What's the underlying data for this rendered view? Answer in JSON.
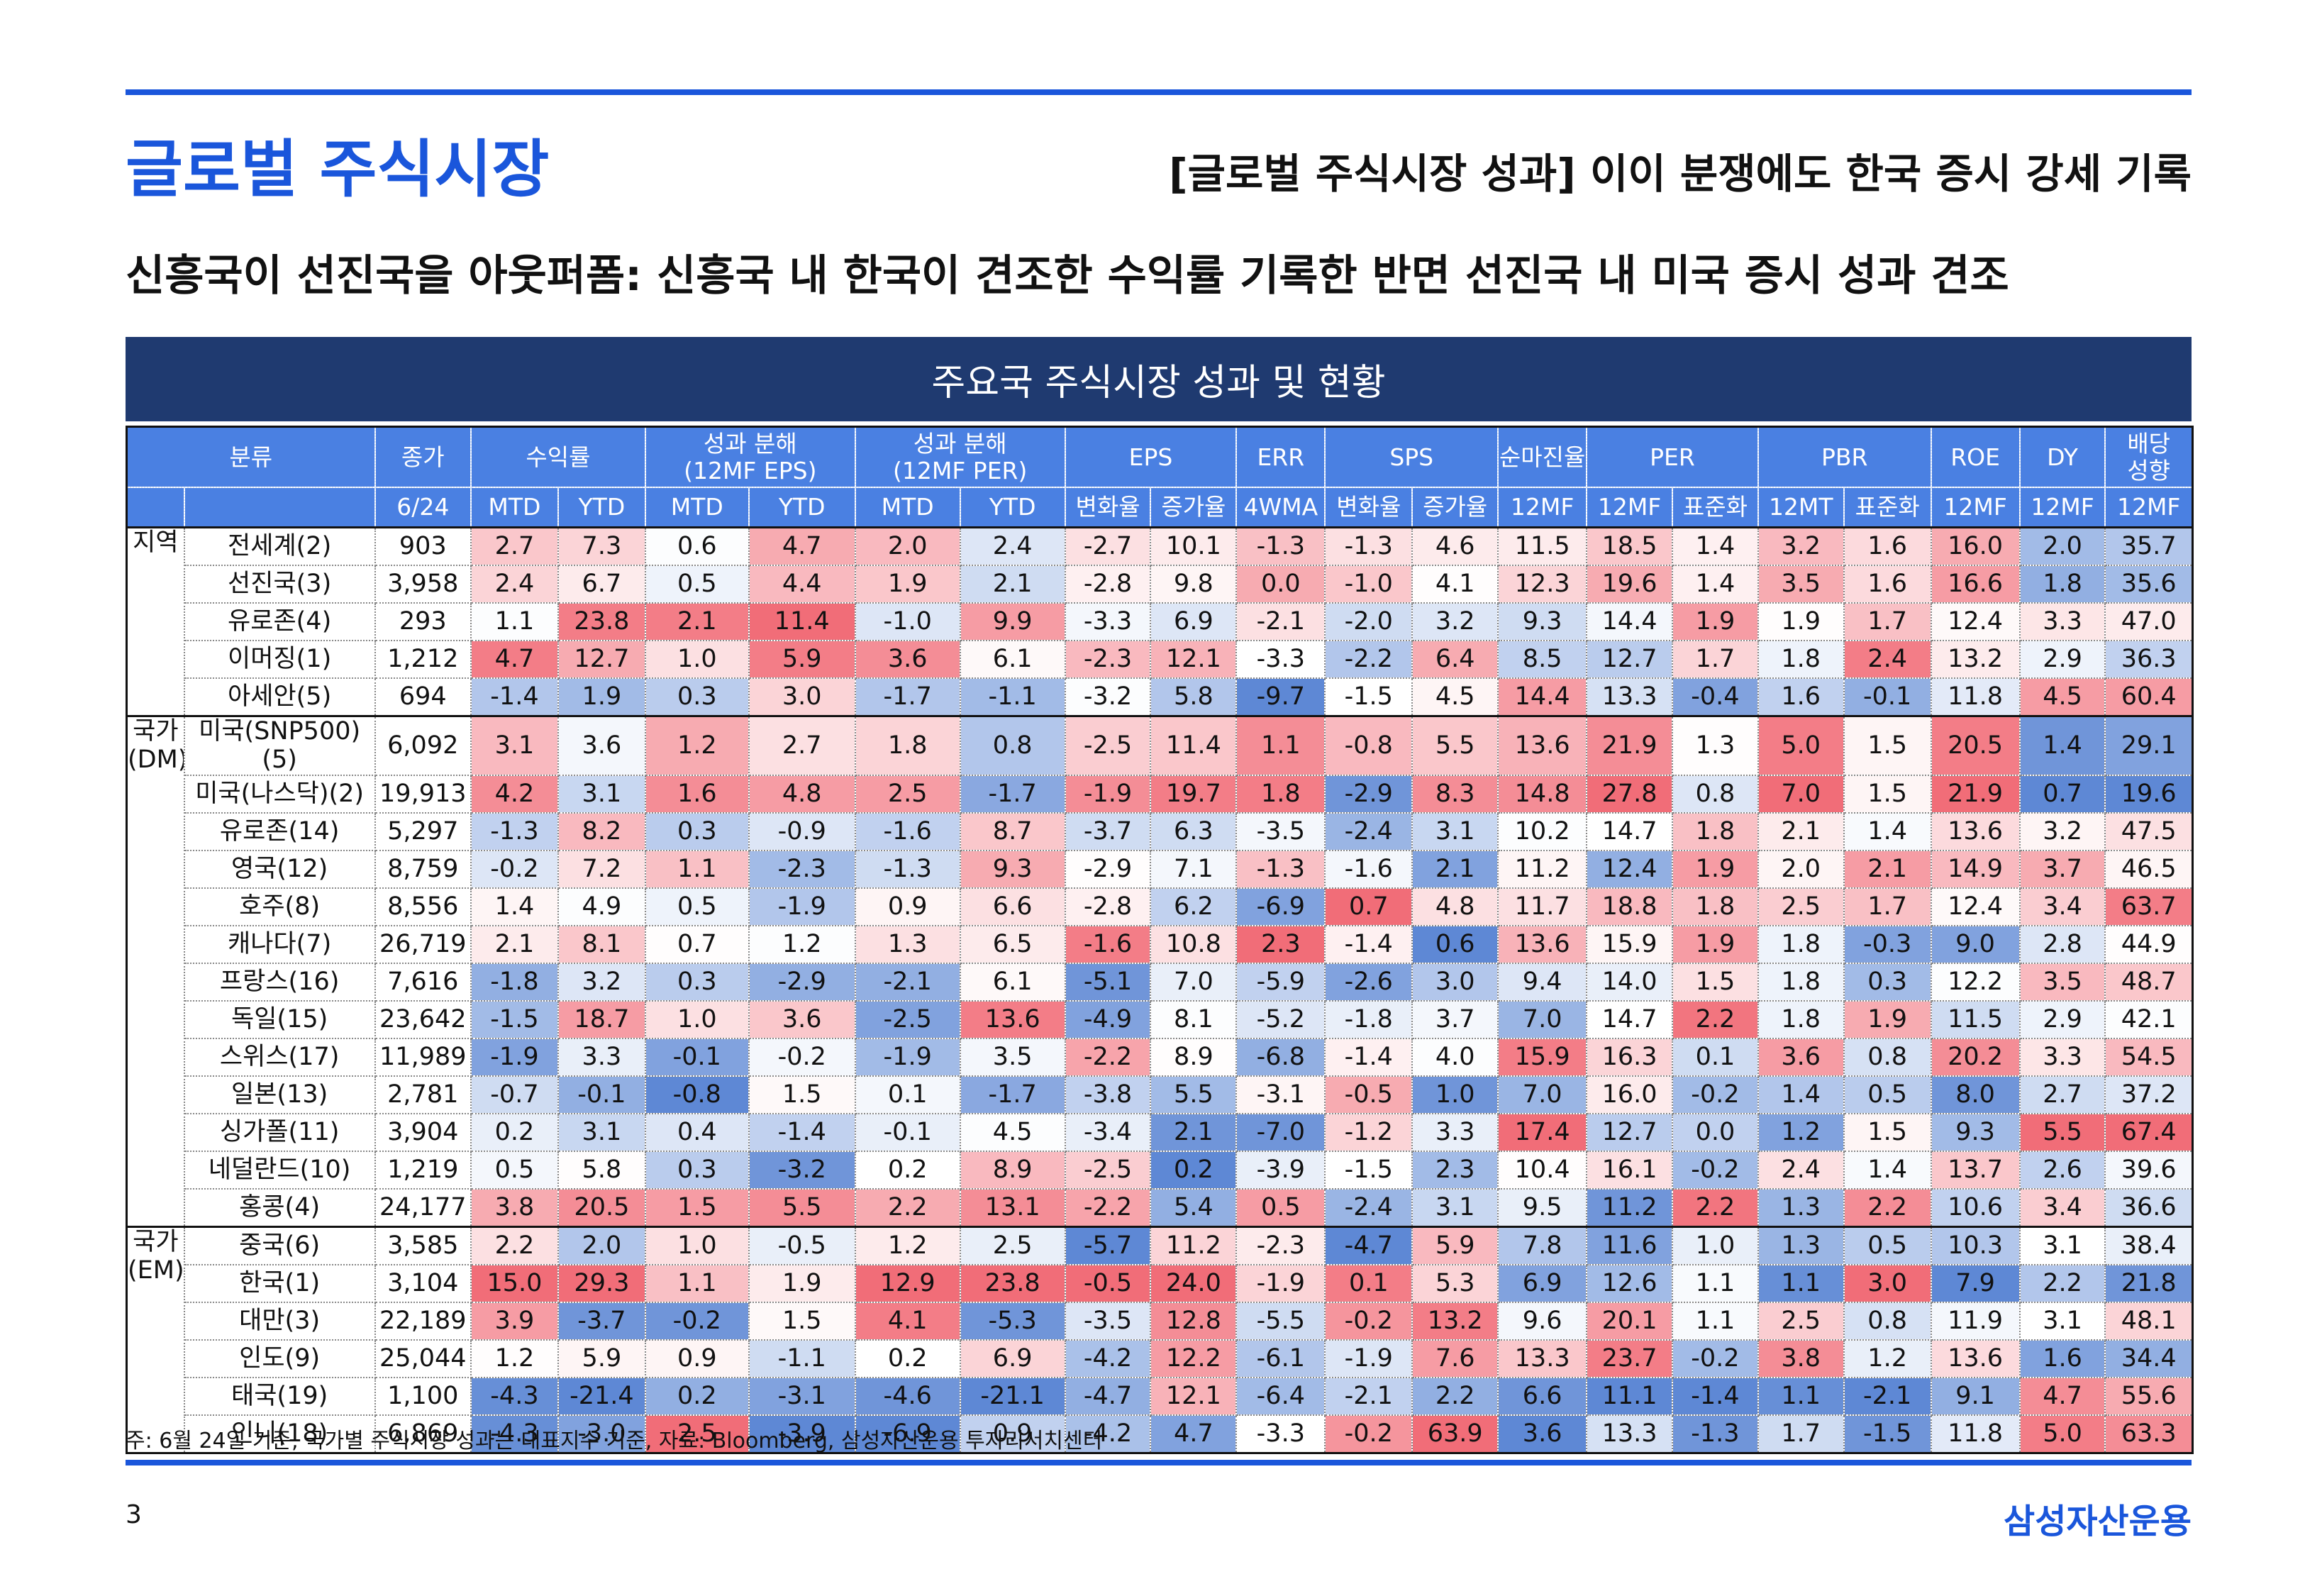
{
  "header": {
    "title": "글로벌 주식시장",
    "headline": "[글로벌 주식시장 성과] 이이 분쟁에도 한국 증시 강세 기록",
    "subtitle": "신흥국이 선진국을 아웃퍼폼: 신흥국 내 한국이 견조한 수익률 기록한 반면 선진국 내 미국 증시 성과 견조"
  },
  "table": {
    "title": "주요국 주식시장 성과 및 현황",
    "columns_top": [
      "분류",
      "종가",
      "수익률",
      "성과 분해\n(12MF EPS)",
      "성과 분해\n(12MF PER)",
      "EPS",
      "ERR",
      "SPS",
      "순마진율",
      "PER",
      "PBR",
      "ROE",
      "DY",
      "배당\n성향"
    ],
    "columns_sub": [
      "6/24",
      "MTD",
      "YTD",
      "MTD",
      "YTD",
      "MTD",
      "YTD",
      "변화율",
      "증가율",
      "4WMA",
      "변화율",
      "증가율",
      "12MF",
      "12MF",
      "표준화",
      "12MT",
      "표준화",
      "12MF",
      "12MF",
      "12MF"
    ],
    "groups": [
      {
        "label": "지역",
        "rows": [
          {
            "name": "전세계(2)",
            "values": [
              "903",
              "2.7",
              "7.3",
              "0.6",
              "4.7",
              "2.0",
              "2.4",
              "-2.7",
              "10.1",
              "-1.3",
              "-1.3",
              "4.6",
              "11.5",
              "18.5",
              "1.4",
              "3.2",
              "1.6",
              "16.0",
              "2.0",
              "35.7"
            ]
          },
          {
            "name": "선진국(3)",
            "values": [
              "3,958",
              "2.4",
              "6.7",
              "0.5",
              "4.4",
              "1.9",
              "2.1",
              "-2.8",
              "9.8",
              "0.0",
              "-1.0",
              "4.1",
              "12.3",
              "19.6",
              "1.4",
              "3.5",
              "1.6",
              "16.6",
              "1.8",
              "35.6"
            ]
          },
          {
            "name": "유로존(4)",
            "values": [
              "293",
              "1.1",
              "23.8",
              "2.1",
              "11.4",
              "-1.0",
              "9.9",
              "-3.3",
              "6.9",
              "-2.1",
              "-2.0",
              "3.2",
              "9.3",
              "14.4",
              "1.9",
              "1.9",
              "1.7",
              "12.4",
              "3.3",
              "47.0"
            ]
          },
          {
            "name": "이머징(1)",
            "values": [
              "1,212",
              "4.7",
              "12.7",
              "1.0",
              "5.9",
              "3.6",
              "6.1",
              "-2.3",
              "12.1",
              "-3.3",
              "-2.2",
              "6.4",
              "8.5",
              "12.7",
              "1.7",
              "1.8",
              "2.4",
              "13.2",
              "2.9",
              "36.3"
            ]
          },
          {
            "name": "아세안(5)",
            "values": [
              "694",
              "-1.4",
              "1.9",
              "0.3",
              "3.0",
              "-1.7",
              "-1.1",
              "-3.2",
              "5.8",
              "-9.7",
              "-1.5",
              "4.5",
              "14.4",
              "13.3",
              "-0.4",
              "1.6",
              "-0.1",
              "11.8",
              "4.5",
              "60.4"
            ]
          }
        ]
      },
      {
        "label": "국가\n(DM)",
        "rows": [
          {
            "name": "미국(SNP500)(5)",
            "values": [
              "6,092",
              "3.1",
              "3.6",
              "1.2",
              "2.7",
              "1.8",
              "0.8",
              "-2.5",
              "11.4",
              "1.1",
              "-0.8",
              "5.5",
              "13.6",
              "21.9",
              "1.3",
              "5.0",
              "1.5",
              "20.5",
              "1.4",
              "29.1"
            ]
          },
          {
            "name": "미국(나스닥)(2)",
            "values": [
              "19,913",
              "4.2",
              "3.1",
              "1.6",
              "4.8",
              "2.5",
              "-1.7",
              "-1.9",
              "19.7",
              "1.8",
              "-2.9",
              "8.3",
              "14.8",
              "27.8",
              "0.8",
              "7.0",
              "1.5",
              "21.9",
              "0.7",
              "19.6"
            ]
          },
          {
            "name": "유로존(14)",
            "values": [
              "5,297",
              "-1.3",
              "8.2",
              "0.3",
              "-0.9",
              "-1.6",
              "8.7",
              "-3.7",
              "6.3",
              "-3.5",
              "-2.4",
              "3.1",
              "10.2",
              "14.7",
              "1.8",
              "2.1",
              "1.4",
              "13.6",
              "3.2",
              "47.5"
            ]
          },
          {
            "name": "영국(12)",
            "values": [
              "8,759",
              "-0.2",
              "7.2",
              "1.1",
              "-2.3",
              "-1.3",
              "9.3",
              "-2.9",
              "7.1",
              "-1.3",
              "-1.6",
              "2.1",
              "11.2",
              "12.4",
              "1.9",
              "2.0",
              "2.1",
              "14.9",
              "3.7",
              "46.5"
            ]
          },
          {
            "name": "호주(8)",
            "values": [
              "8,556",
              "1.4",
              "4.9",
              "0.5",
              "-1.9",
              "0.9",
              "6.6",
              "-2.8",
              "6.2",
              "-6.9",
              "0.7",
              "4.8",
              "11.7",
              "18.8",
              "1.8",
              "2.5",
              "1.7",
              "12.4",
              "3.4",
              "63.7"
            ]
          },
          {
            "name": "캐나다(7)",
            "values": [
              "26,719",
              "2.1",
              "8.1",
              "0.7",
              "1.2",
              "1.3",
              "6.5",
              "-1.6",
              "10.8",
              "2.3",
              "-1.4",
              "0.6",
              "13.6",
              "15.9",
              "1.9",
              "1.8",
              "-0.3",
              "9.0",
              "2.8",
              "44.9"
            ]
          },
          {
            "name": "프랑스(16)",
            "values": [
              "7,616",
              "-1.8",
              "3.2",
              "0.3",
              "-2.9",
              "-2.1",
              "6.1",
              "-5.1",
              "7.0",
              "-5.9",
              "-2.6",
              "3.0",
              "9.4",
              "14.0",
              "1.5",
              "1.8",
              "0.3",
              "12.2",
              "3.5",
              "48.7"
            ]
          },
          {
            "name": "독일(15)",
            "values": [
              "23,642",
              "-1.5",
              "18.7",
              "1.0",
              "3.6",
              "-2.5",
              "13.6",
              "-4.9",
              "8.1",
              "-5.2",
              "-1.8",
              "3.7",
              "7.0",
              "14.7",
              "2.2",
              "1.8",
              "1.9",
              "11.5",
              "2.9",
              "42.1"
            ]
          },
          {
            "name": "스위스(17)",
            "values": [
              "11,989",
              "-1.9",
              "3.3",
              "-0.1",
              "-0.2",
              "-1.9",
              "3.5",
              "-2.2",
              "8.9",
              "-6.8",
              "-1.4",
              "4.0",
              "15.9",
              "16.3",
              "0.1",
              "3.6",
              "0.8",
              "20.2",
              "3.3",
              "54.5"
            ]
          },
          {
            "name": "일본(13)",
            "values": [
              "2,781",
              "-0.7",
              "-0.1",
              "-0.8",
              "1.5",
              "0.1",
              "-1.7",
              "-3.8",
              "5.5",
              "-3.1",
              "-0.5",
              "1.0",
              "7.0",
              "16.0",
              "-0.2",
              "1.4",
              "0.5",
              "8.0",
              "2.7",
              "37.2"
            ]
          },
          {
            "name": "싱가폴(11)",
            "values": [
              "3,904",
              "0.2",
              "3.1",
              "0.4",
              "-1.4",
              "-0.1",
              "4.5",
              "-3.4",
              "2.1",
              "-7.0",
              "-1.2",
              "3.3",
              "17.4",
              "12.7",
              "0.0",
              "1.2",
              "1.5",
              "9.3",
              "5.5",
              "67.4"
            ]
          },
          {
            "name": "네덜란드(10)",
            "values": [
              "1,219",
              "0.5",
              "5.8",
              "0.3",
              "-3.2",
              "0.2",
              "8.9",
              "-2.5",
              "0.2",
              "-3.9",
              "-1.5",
              "2.3",
              "10.4",
              "16.1",
              "-0.2",
              "2.4",
              "1.4",
              "13.7",
              "2.6",
              "39.6"
            ]
          },
          {
            "name": "홍콩(4)",
            "values": [
              "24,177",
              "3.8",
              "20.5",
              "1.5",
              "5.5",
              "2.2",
              "13.1",
              "-2.2",
              "5.4",
              "0.5",
              "-2.4",
              "3.1",
              "9.5",
              "11.2",
              "2.2",
              "1.3",
              "2.2",
              "10.6",
              "3.4",
              "36.6"
            ]
          }
        ]
      },
      {
        "label": "국가\n(EM)",
        "rows": [
          {
            "name": "중국(6)",
            "values": [
              "3,585",
              "2.2",
              "2.0",
              "1.0",
              "-0.5",
              "1.2",
              "2.5",
              "-5.7",
              "11.2",
              "-2.3",
              "-4.7",
              "5.9",
              "7.8",
              "11.6",
              "1.0",
              "1.3",
              "0.5",
              "10.3",
              "3.1",
              "38.4"
            ]
          },
          {
            "name": "한국(1)",
            "values": [
              "3,104",
              "15.0",
              "29.3",
              "1.1",
              "1.9",
              "12.9",
              "23.8",
              "-0.5",
              "24.0",
              "-1.9",
              "0.1",
              "5.3",
              "6.9",
              "12.6",
              "1.1",
              "1.1",
              "3.0",
              "7.9",
              "2.2",
              "21.8"
            ]
          },
          {
            "name": "대만(3)",
            "values": [
              "22,189",
              "3.9",
              "-3.7",
              "-0.2",
              "1.5",
              "4.1",
              "-5.3",
              "-3.5",
              "12.8",
              "-5.5",
              "-0.2",
              "13.2",
              "9.6",
              "20.1",
              "1.1",
              "2.5",
              "0.8",
              "11.9",
              "3.1",
              "48.1"
            ]
          },
          {
            "name": "인도(9)",
            "values": [
              "25,044",
              "1.2",
              "5.9",
              "0.9",
              "-1.1",
              "0.2",
              "6.9",
              "-4.2",
              "12.2",
              "-6.1",
              "-1.9",
              "7.6",
              "13.3",
              "23.7",
              "-0.2",
              "3.8",
              "1.2",
              "13.6",
              "1.6",
              "34.4"
            ]
          },
          {
            "name": "태국(19)",
            "values": [
              "1,100",
              "-4.3",
              "-21.4",
              "0.2",
              "-3.1",
              "-4.6",
              "-21.1",
              "-4.7",
              "12.1",
              "-6.4",
              "-2.1",
              "2.2",
              "6.6",
              "11.1",
              "-1.4",
              "1.1",
              "-2.1",
              "9.1",
              "4.7",
              "55.6"
            ]
          },
          {
            "name": "인니(18)",
            "values": [
              "6,869",
              "-4.3",
              "-3.0",
              "2.5",
              "-3.9",
              "-6.9",
              "0.9",
              "-4.2",
              "4.7",
              "-3.3",
              "-0.2",
              "63.9",
              "3.6",
              "13.3",
              "-1.3",
              "1.7",
              "-1.5",
              "11.8",
              "5.0",
              "63.3"
            ]
          }
        ]
      }
    ]
  },
  "footnote": "주: 6월 24일 기준, 국가별 주식시장 성과는 대표지수 기준, 자료: Bloomberg, 삼성자산운용 투자리서치센터",
  "page": "3",
  "logo": "삼성자산운용"
}
